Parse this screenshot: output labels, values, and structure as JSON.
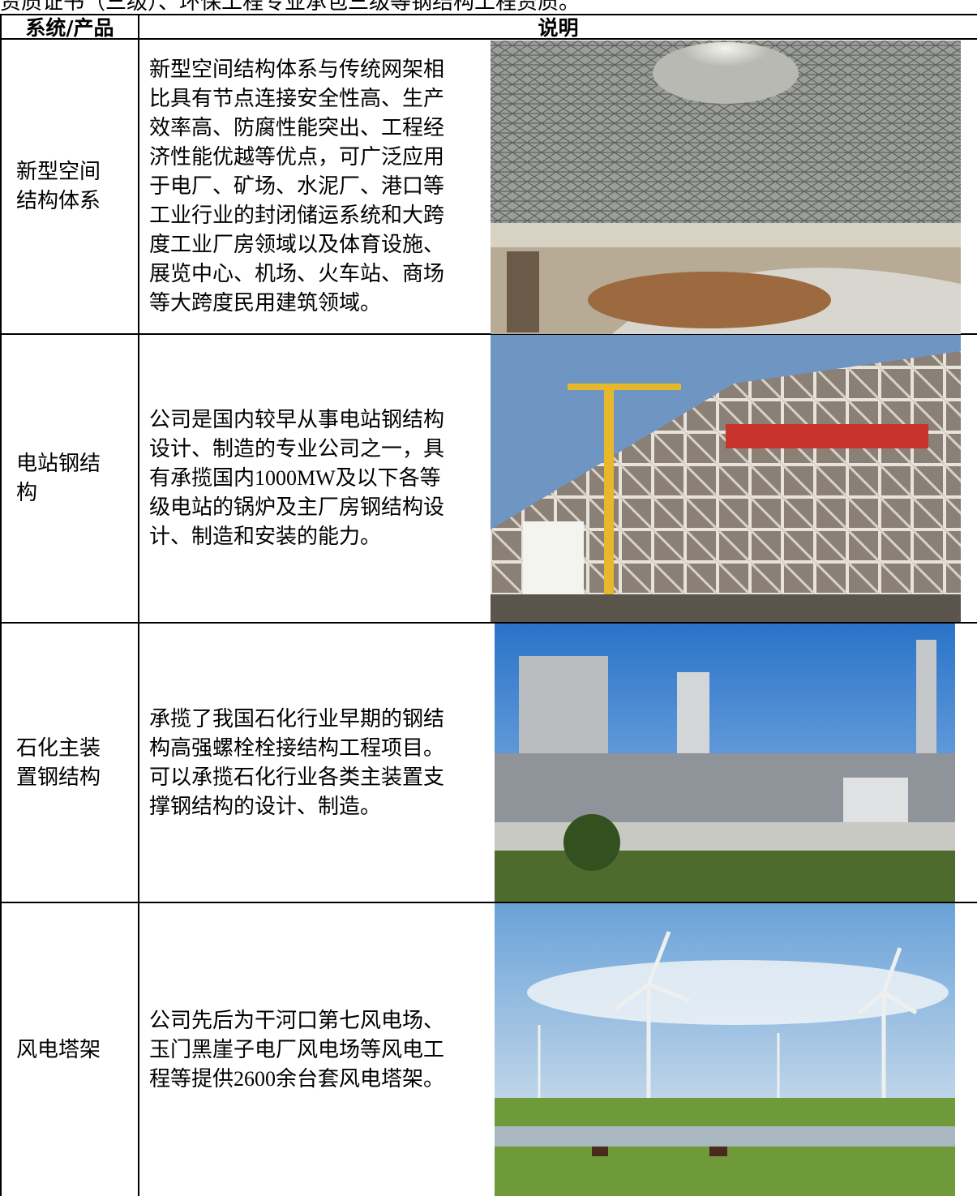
{
  "header": {
    "intro": "资质证书（三级）、环保工程专业承包三级等钢结构工程资质。"
  },
  "table": {
    "columns": [
      "系统/产品",
      "说明"
    ],
    "rows": [
      [
        "新型空间结构体系",
        "新型空间结构体系与传统网架相比具有节点连接安全性高、生产效率高、防腐性能突出、工程经济性能优越等优点，可广泛应用于电厂、矿场、水泥厂、港口等工业行业的封闭储运系统和大跨度工业厂房领域以及体育设施、展览中心、机场、火车站、商场等大跨度民用建筑领域。"
      ],
      [
        "电站钢结构",
        "公司是国内较早从事电站钢结构设计、制造的专业公司之一，具有承揽国内1000MW及以下各等级电站的锅炉及主厂房钢结构设计、制造和安装的能力。"
      ],
      [
        "石化主装置钢结构",
        "承揽了我国石化行业早期的钢结构高强螺栓栓接结构工程项目。可以承揽石化行业各类主装置支撑钢结构的设计、制造。"
      ],
      [
        "风电塔架",
        "公司先后为干河口第七风电场、玉门黑崖子电厂风电场等风电工程等提供2600余台套风电塔架。"
      ]
    ]
  }
}
